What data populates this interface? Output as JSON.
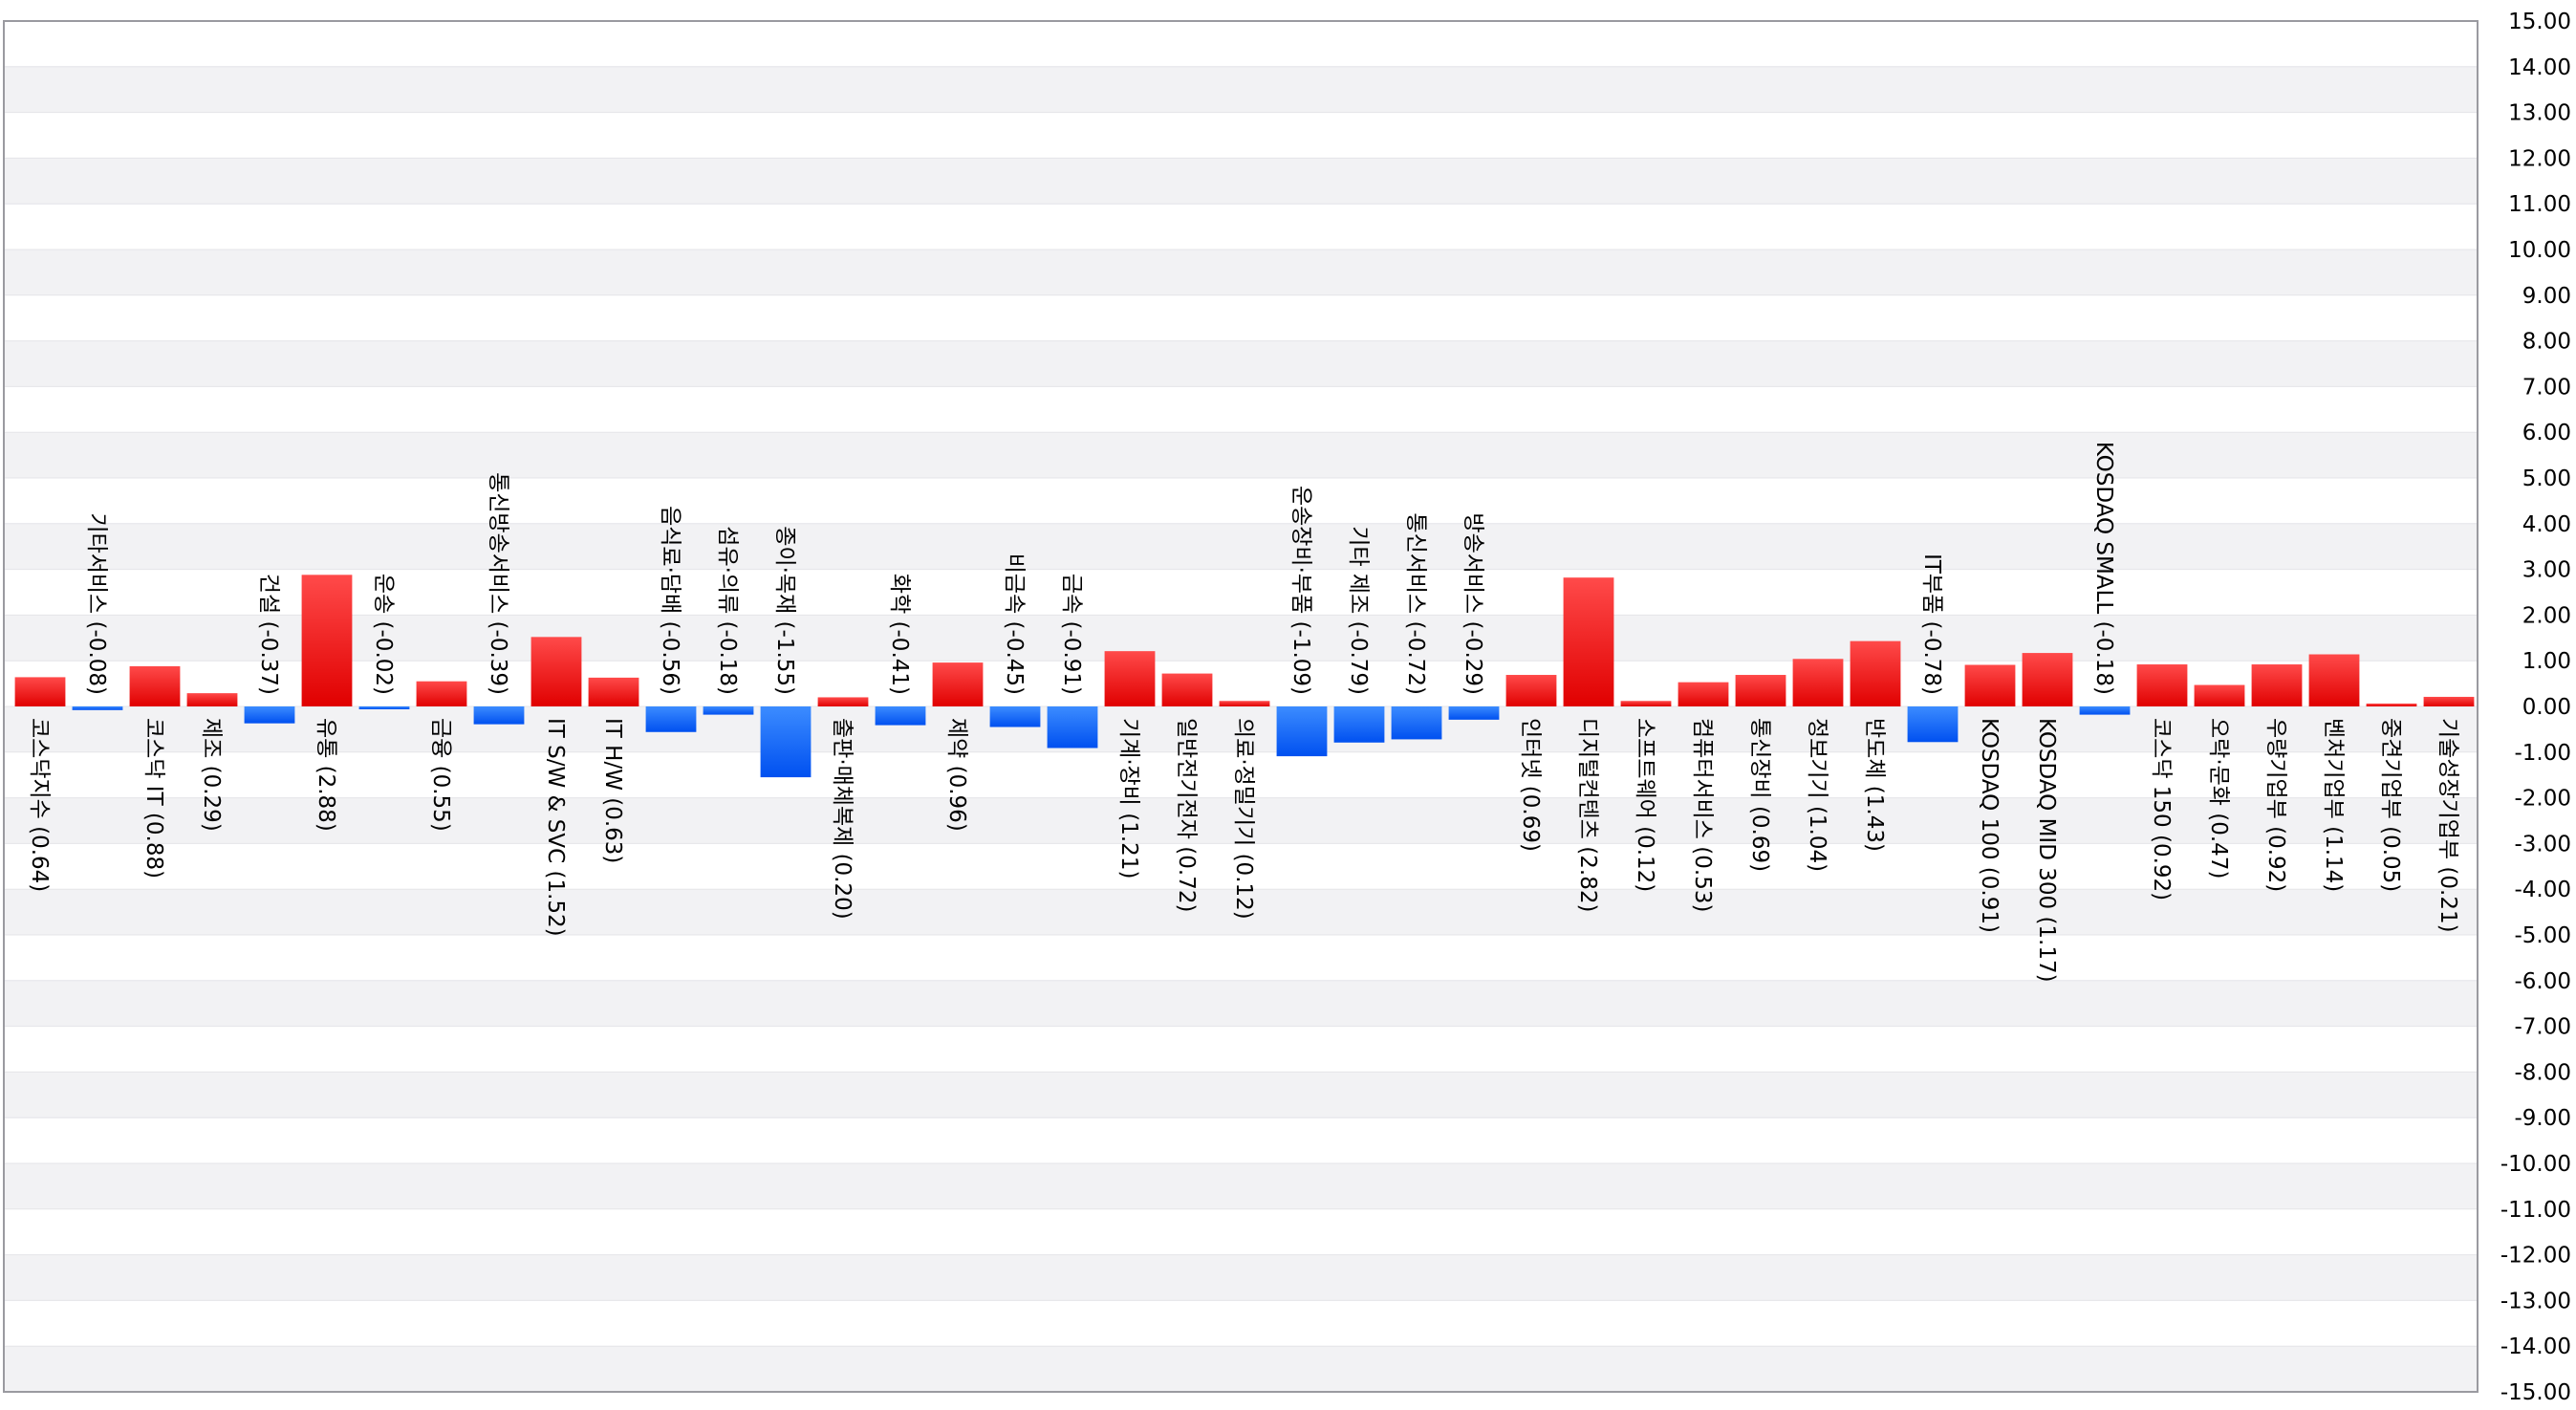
{
  "chart_data": {
    "type": "bar",
    "title": "",
    "xlabel": "",
    "ylabel": "",
    "ylim": [
      -15,
      15
    ],
    "y_ticks": [
      "15.00",
      "14.00",
      "13.00",
      "12.00",
      "11.00",
      "10.00",
      "9.00",
      "8.00",
      "7.00",
      "6.00",
      "5.00",
      "4.00",
      "3.00",
      "2.00",
      "1.00",
      "0.00",
      "-1.00",
      "-2.00",
      "-3.00",
      "-4.00",
      "-5.00",
      "-6.00",
      "-7.00",
      "-8.00",
      "-9.00",
      "-10.00",
      "-11.00",
      "-12.00",
      "-13.00",
      "-14.00",
      "-15.00"
    ],
    "y_axis_position": "right",
    "grid": "alternating horizontal bands",
    "colors": {
      "positive": "#e00000",
      "negative": "#0050f0",
      "band": "#f2f2f4",
      "frame": "#9a9aa0"
    },
    "bars": [
      {
        "label": "코스닥지수 (0.64)",
        "value": 0.64
      },
      {
        "label": "기타서비스 (-0.08)",
        "value": -0.08
      },
      {
        "label": "코스닥 IT (0.88)",
        "value": 0.88
      },
      {
        "label": "제조 (0.29)",
        "value": 0.29
      },
      {
        "label": "건설 (-0.37)",
        "value": -0.37
      },
      {
        "label": "유통 (2.88)",
        "value": 2.88
      },
      {
        "label": "운송 (-0.02)",
        "value": -0.02
      },
      {
        "label": "금융 (0.55)",
        "value": 0.55
      },
      {
        "label": "통신방송서비스 (-0.39)",
        "value": -0.39
      },
      {
        "label": "IT S/W & SVC (1.52)",
        "value": 1.52
      },
      {
        "label": "IT H/W (0.63)",
        "value": 0.63
      },
      {
        "label": "음식료·담배 (-0.56)",
        "value": -0.56
      },
      {
        "label": "섬유·의류 (-0.18)",
        "value": -0.18
      },
      {
        "label": "종이·목재 (-1.55)",
        "value": -1.55
      },
      {
        "label": "출판·매체복제 (0.20)",
        "value": 0.2
      },
      {
        "label": "화학 (-0.41)",
        "value": -0.41
      },
      {
        "label": "제약 (0.96)",
        "value": 0.96
      },
      {
        "label": "비금속 (-0.45)",
        "value": -0.45
      },
      {
        "label": "금속 (-0.91)",
        "value": -0.91
      },
      {
        "label": "기계·장비 (1.21)",
        "value": 1.21
      },
      {
        "label": "일반전기전자 (0.72)",
        "value": 0.72
      },
      {
        "label": "의료·정밀기기 (0.12)",
        "value": 0.12
      },
      {
        "label": "운송장비·부품 (-1.09)",
        "value": -1.09
      },
      {
        "label": "기타 제조 (-0.79)",
        "value": -0.79
      },
      {
        "label": "통신서비스 (-0.72)",
        "value": -0.72
      },
      {
        "label": "방송서비스 (-0.29)",
        "value": -0.29
      },
      {
        "label": "인터넷 (0.69)",
        "value": 0.69
      },
      {
        "label": "디지털컨텐츠 (2.82)",
        "value": 2.82
      },
      {
        "label": "소프트웨어 (0.12)",
        "value": 0.12
      },
      {
        "label": "컴퓨터서비스 (0.53)",
        "value": 0.53
      },
      {
        "label": "통신장비 (0.69)",
        "value": 0.69
      },
      {
        "label": "정보기기 (1.04)",
        "value": 1.04
      },
      {
        "label": "반도체 (1.43)",
        "value": 1.43
      },
      {
        "label": "IT부품 (-0.78)",
        "value": -0.78
      },
      {
        "label": "KOSDAQ 100 (0.91)",
        "value": 0.91
      },
      {
        "label": "KOSDAQ MID 300 (1.17)",
        "value": 1.17
      },
      {
        "label": "KOSDAQ SMALL (-0.18)",
        "value": -0.18
      },
      {
        "label": "코스닥 150 (0.92)",
        "value": 0.92
      },
      {
        "label": "오락·문화 (0.47)",
        "value": 0.47
      },
      {
        "label": "우량기업부 (0.92)",
        "value": 0.92
      },
      {
        "label": "벤처기업부 (1.14)",
        "value": 1.14
      },
      {
        "label": "중견기업부 (0.05)",
        "value": 0.05
      },
      {
        "label": "기술성장기업부 (0.21)",
        "value": 0.21
      }
    ]
  }
}
